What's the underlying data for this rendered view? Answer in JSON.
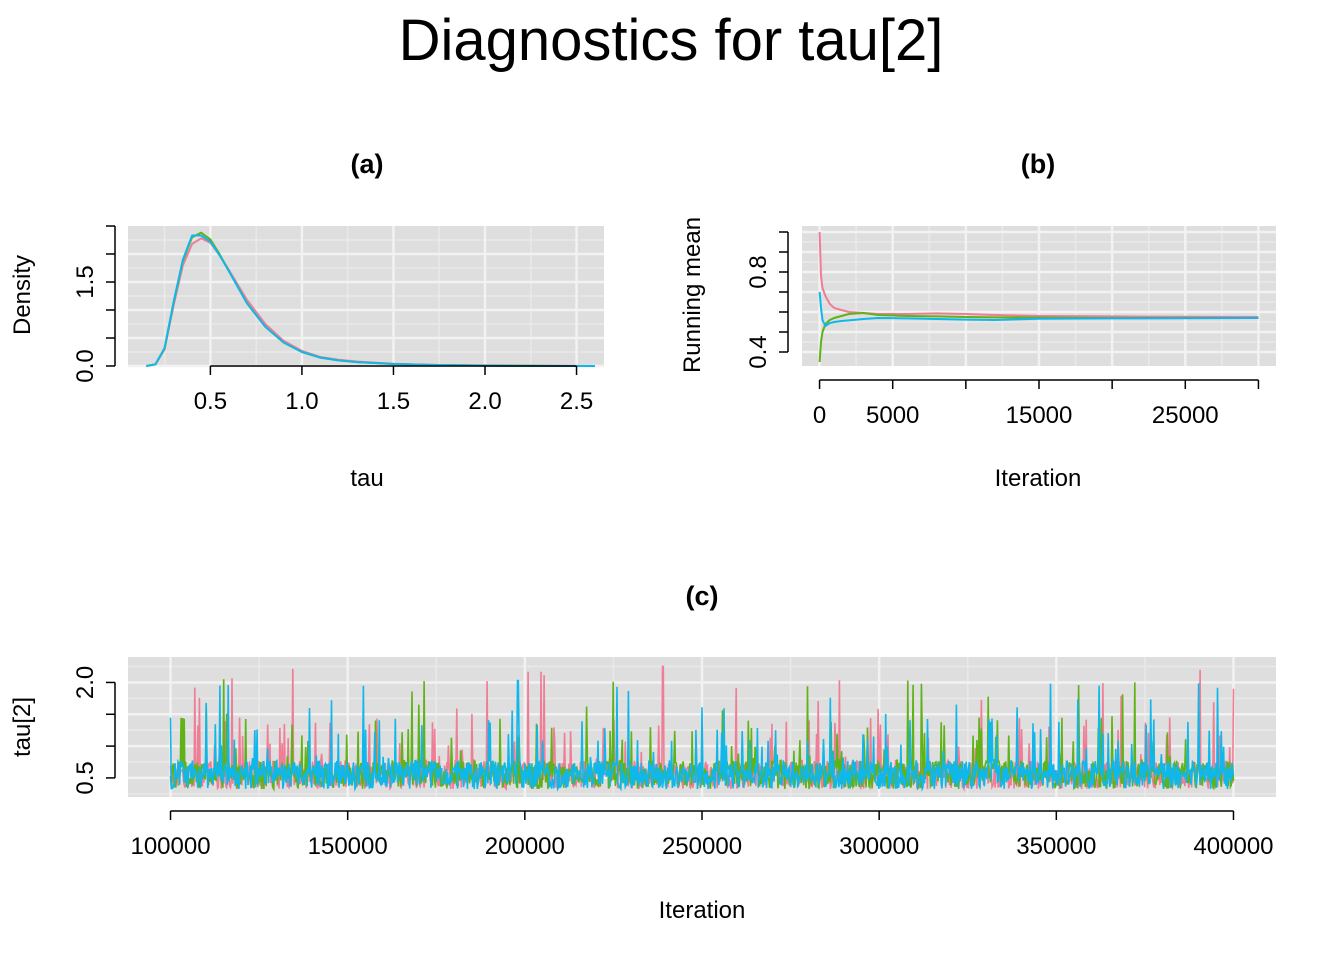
{
  "title": "Diagnostics for tau[2]",
  "colors": {
    "background": "#ffffff",
    "panel": "#dedede",
    "grid_major": "#f2f2f2",
    "grid_minor": "#e9e9e9",
    "chain1": "#f07d96",
    "chain2": "#5fb218",
    "chain3": "#10b7ea"
  },
  "chart_data": [
    {
      "panel": "(a)",
      "type": "line",
      "title": "(a)",
      "xlabel": "tau",
      "ylabel": "Density",
      "xlim": [
        0.05,
        2.65
      ],
      "ylim": [
        0,
        2.5
      ],
      "grid": true,
      "x_ticks": [
        "0.5",
        "1.0",
        "1.5",
        "2.0",
        "2.5"
      ],
      "y_ticks": [
        "0.0",
        "1.5"
      ],
      "x": [
        0.15,
        0.2,
        0.25,
        0.3,
        0.35,
        0.4,
        0.45,
        0.5,
        0.55,
        0.6,
        0.7,
        0.8,
        0.9,
        1.0,
        1.1,
        1.2,
        1.3,
        1.5,
        1.7,
        2.0,
        2.25,
        2.4,
        2.6
      ],
      "series": [
        {
          "values": [
            0.0,
            0.03,
            0.3,
            1.1,
            1.8,
            2.18,
            2.28,
            2.2,
            1.98,
            1.72,
            1.18,
            0.75,
            0.45,
            0.27,
            0.16,
            0.11,
            0.08,
            0.04,
            0.02,
            0.01,
            0.005,
            0.003,
            0.0
          ]
        },
        {
          "values": [
            0.0,
            0.03,
            0.32,
            1.15,
            1.88,
            2.3,
            2.38,
            2.26,
            2.0,
            1.7,
            1.12,
            0.7,
            0.42,
            0.25,
            0.15,
            0.1,
            0.07,
            0.035,
            0.02,
            0.008,
            0.003,
            0.0,
            0.0
          ]
        },
        {
          "values": [
            0.0,
            0.03,
            0.32,
            1.16,
            1.9,
            2.33,
            2.33,
            2.22,
            1.98,
            1.7,
            1.12,
            0.7,
            0.42,
            0.25,
            0.15,
            0.1,
            0.07,
            0.035,
            0.02,
            0.008,
            0.002,
            0.0,
            0.0
          ]
        }
      ]
    },
    {
      "panel": "(b)",
      "type": "line",
      "title": "(b)",
      "xlabel": "Iteration",
      "ylabel": "Running mean",
      "xlim": [
        -1200,
        31200
      ],
      "ylim": [
        0.33,
        1.03
      ],
      "grid": true,
      "x_ticks": [
        "0",
        "5000",
        "15000",
        "25000"
      ],
      "y_ticks": [
        "0.4",
        "0.8"
      ],
      "x": [
        0,
        100,
        200,
        400,
        700,
        1000,
        1500,
        2000,
        3000,
        4000,
        6000,
        8000,
        10000,
        12000,
        15000,
        20000,
        25000,
        30000
      ],
      "series": [
        {
          "values": [
            1.0,
            0.78,
            0.72,
            0.68,
            0.64,
            0.62,
            0.61,
            0.6,
            0.595,
            0.59,
            0.59,
            0.593,
            0.59,
            0.585,
            0.58,
            0.578,
            0.576,
            0.575
          ]
        },
        {
          "values": [
            0.35,
            0.45,
            0.5,
            0.54,
            0.56,
            0.57,
            0.58,
            0.59,
            0.595,
            0.585,
            0.58,
            0.578,
            0.575,
            0.573,
            0.572,
            0.57,
            0.57,
            0.57
          ]
        },
        {
          "values": [
            0.7,
            0.62,
            0.56,
            0.53,
            0.545,
            0.55,
            0.555,
            0.558,
            0.565,
            0.57,
            0.568,
            0.565,
            0.562,
            0.56,
            0.566,
            0.568,
            0.569,
            0.57
          ]
        }
      ]
    },
    {
      "panel": "(c)",
      "type": "line",
      "title": "(c)",
      "xlabel": "Iteration",
      "ylabel": "tau[2]",
      "xlim": [
        88000,
        412000
      ],
      "ylim": [
        0.2,
        2.4
      ],
      "grid": true,
      "x_ticks": [
        "100000",
        "150000",
        "200000",
        "250000",
        "300000",
        "350000",
        "400000"
      ],
      "y_ticks": [
        "0.5",
        "2.0"
      ],
      "x_range": [
        100000,
        400000
      ],
      "series": [
        {
          "baseline": 0.55,
          "low": 0.3,
          "peak": 2.25,
          "peak_at": 239000
        },
        {
          "baseline": 0.55,
          "low": 0.3,
          "peak": 2.05,
          "peak_at": 115000
        },
        {
          "baseline": 0.55,
          "low": 0.32,
          "peak": 2.03,
          "peak_at": 198000
        }
      ]
    }
  ]
}
